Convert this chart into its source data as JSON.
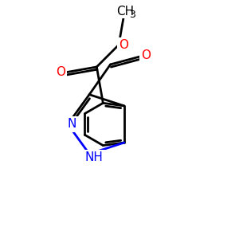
{
  "bg_color": "#ffffff",
  "bond_color": "#000000",
  "N_color": "#0000ff",
  "O_color": "#ff0000",
  "lw": 2.0,
  "fs": 11,
  "bl": 1.0,
  "xlim": [
    0,
    10
  ],
  "ylim": [
    0,
    10
  ]
}
